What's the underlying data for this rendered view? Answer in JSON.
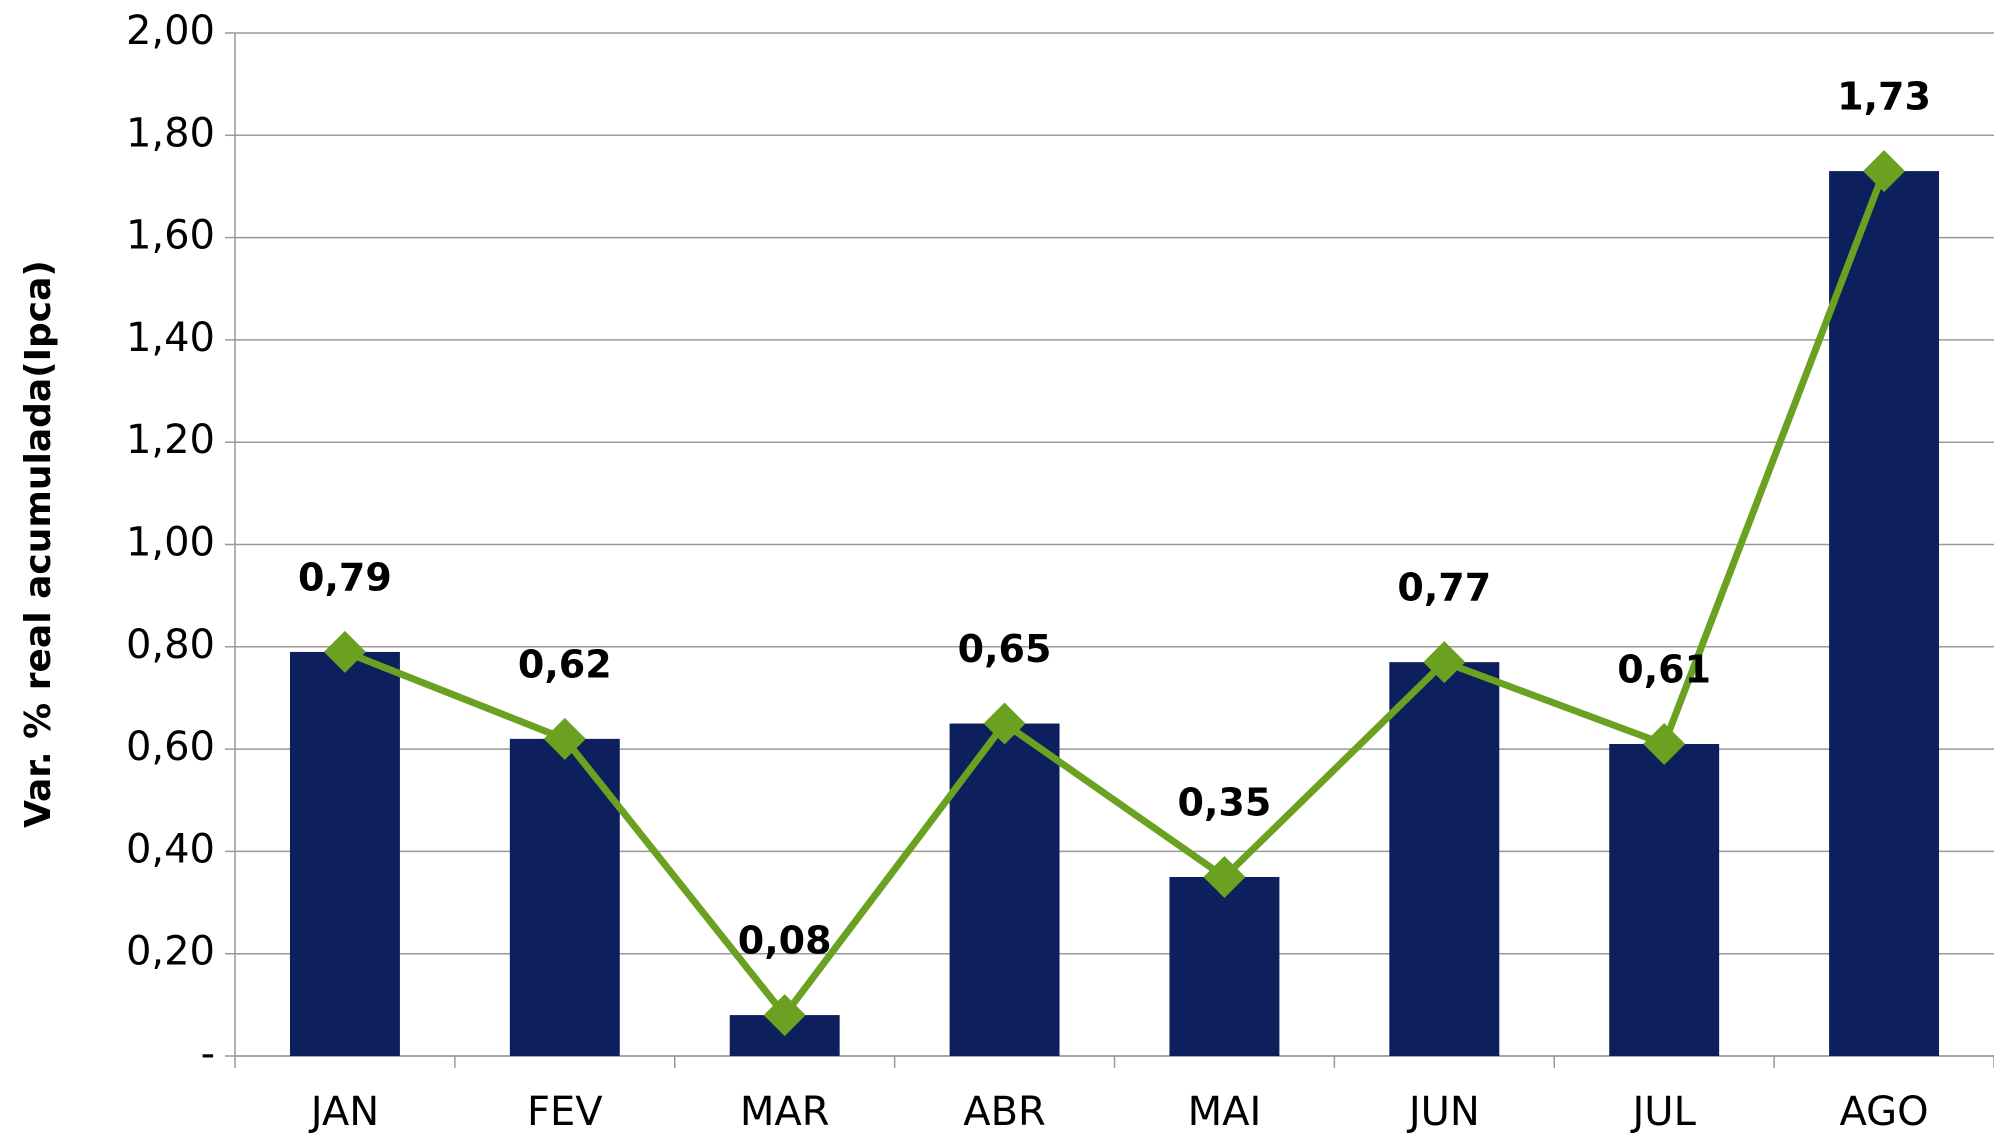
{
  "chart_data": {
    "type": "bar_line",
    "y_label": "Var. % real acumulada(Ipca)",
    "categories": [
      "JAN",
      "FEV",
      "MAR",
      "ABR",
      "MAI",
      "JUN",
      "JUL",
      "AGO"
    ],
    "values": [
      0.79,
      0.62,
      0.08,
      0.65,
      0.35,
      0.77,
      0.61,
      1.73
    ],
    "value_labels": [
      "0,79",
      "0,62",
      "0,08",
      "0,65",
      "0,35",
      "0,77",
      "0,61",
      "1,73"
    ],
    "color": "#0d1f5c",
    "line_color": "#6aa121",
    "ylim": [
      0,
      2
    ],
    "yticks": [
      {
        "value": 0,
        "label": "-"
      },
      {
        "value": 0.2,
        "label": "0,20"
      },
      {
        "value": 0.4,
        "label": "0,40"
      },
      {
        "value": 0.6,
        "label": "0,60"
      },
      {
        "value": 0.8,
        "label": "0,80"
      },
      {
        "value": 1,
        "label": "1,00"
      },
      {
        "value": 1.2,
        "label": "1,20"
      },
      {
        "value": 1.4,
        "label": "1,40"
      },
      {
        "value": 1.6,
        "label": "1,60"
      },
      {
        "value": 1.8,
        "label": "1,80"
      },
      {
        "value": 2,
        "label": "2,00"
      }
    ],
    "grid": true
  }
}
